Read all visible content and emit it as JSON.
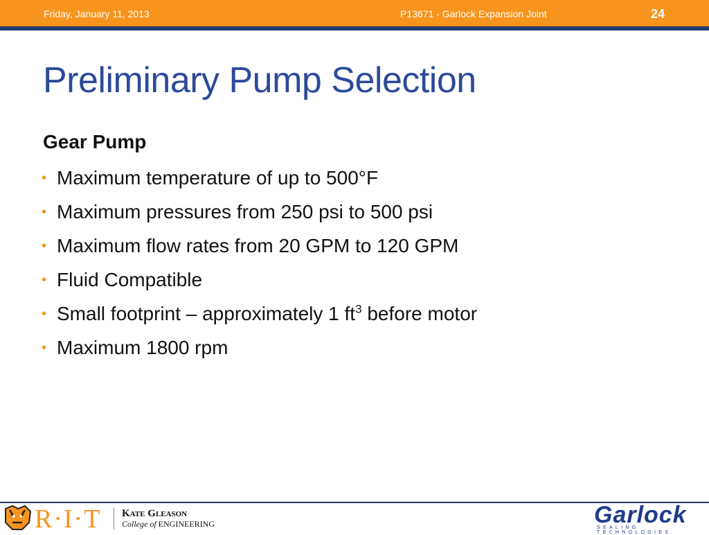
{
  "header": {
    "date": "Friday, January 11, 2013",
    "project": "P13671 - Garlock Expansion Joint",
    "slide_number": "24"
  },
  "title": "Preliminary Pump Selection",
  "subtitle": "Gear Pump",
  "bullets": [
    "Maximum temperature of up to 500°F",
    "Maximum pressures from 250 psi to 500 psi",
    "Maximum flow rates from 20 GPM to 120 GPM",
    "Fluid Compatible",
    {
      "text": "Small footprint – approximately 1 ft",
      "sup": "3",
      "tail": " before motor"
    },
    "Maximum 1800 rpm"
  ],
  "footer": {
    "rit": "R·I·T",
    "college_name": "Kate Gleason",
    "college_of": "College of",
    "college_eng": "ENGINEERING",
    "company": "Garlock",
    "company_tag": "SEALING TECHNOLOGIES"
  }
}
